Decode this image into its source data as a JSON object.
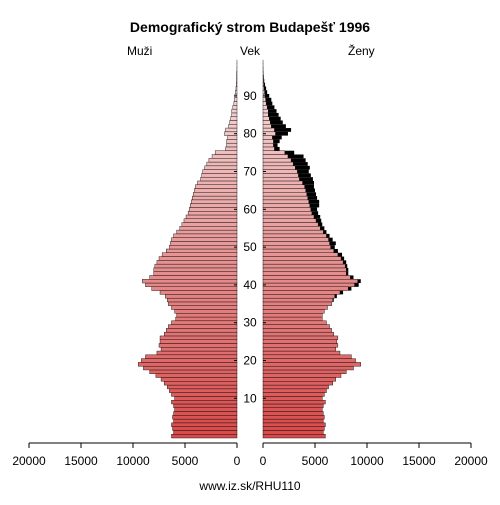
{
  "chart_data": {
    "type": "bar",
    "orientation": "horizontal-pyramid",
    "title": "Demografický strom Budapešť 1996",
    "left_label": "Muži",
    "center_label": "Vek",
    "right_label": "Ženy",
    "footer": "www.iz.sk/RHU110",
    "age_ticks": [
      "10",
      "20",
      "30",
      "40",
      "50",
      "60",
      "70",
      "80",
      "90"
    ],
    "x_tick_labels_left": [
      "20000",
      "15000",
      "10000",
      "5000",
      "0"
    ],
    "x_tick_labels_right": [
      "0",
      "5000",
      "10000",
      "15000",
      "20000"
    ],
    "xlim": [
      0,
      20000
    ],
    "age_range": [
      0,
      99
    ],
    "colors": {
      "bar_young": "#d94a4a",
      "bar_old": "#f7e3e3",
      "women_excess": "#000000",
      "bar_outline": "#000000"
    },
    "ages": [
      0,
      1,
      2,
      3,
      4,
      5,
      6,
      7,
      8,
      9,
      10,
      11,
      12,
      13,
      14,
      15,
      16,
      17,
      18,
      19,
      20,
      21,
      22,
      23,
      24,
      25,
      26,
      27,
      28,
      29,
      30,
      31,
      32,
      33,
      34,
      35,
      36,
      37,
      38,
      39,
      40,
      41,
      42,
      43,
      44,
      45,
      46,
      47,
      48,
      49,
      50,
      51,
      52,
      53,
      54,
      55,
      56,
      57,
      58,
      59,
      60,
      61,
      62,
      63,
      64,
      65,
      66,
      67,
      68,
      69,
      70,
      71,
      72,
      73,
      74,
      75,
      76,
      77,
      78,
      79,
      80,
      81,
      82,
      83,
      84,
      85,
      86,
      87,
      88,
      89,
      90,
      91,
      92,
      93,
      94,
      95,
      96,
      97,
      98,
      99
    ],
    "series": [
      {
        "name": "Muži",
        "values": [
          6300,
          6100,
          6200,
          6300,
          6100,
          6200,
          6100,
          6000,
          6100,
          6300,
          6000,
          6300,
          6500,
          6700,
          7000,
          7300,
          7800,
          8400,
          9000,
          9500,
          9200,
          8800,
          7700,
          7300,
          7500,
          7400,
          7400,
          7000,
          6800,
          6600,
          6300,
          5900,
          5800,
          6000,
          6300,
          6600,
          6700,
          6900,
          7400,
          8200,
          8800,
          9100,
          8400,
          8000,
          8000,
          7900,
          7700,
          7500,
          7200,
          6800,
          6500,
          6400,
          6300,
          6100,
          5800,
          5500,
          5300,
          5100,
          4900,
          4700,
          4600,
          4500,
          4400,
          4300,
          4200,
          4100,
          4000,
          3800,
          3500,
          3400,
          3300,
          3100,
          2900,
          2700,
          2400,
          2100,
          1100,
          1000,
          1000,
          900,
          1200,
          1100,
          800,
          700,
          600,
          500,
          500,
          400,
          300,
          250,
          200,
          150,
          100,
          70,
          50,
          30,
          20,
          10,
          5,
          3
        ]
      },
      {
        "name": "Ženy",
        "values": [
          6000,
          5800,
          5900,
          6000,
          5800,
          5900,
          5800,
          5700,
          5800,
          6000,
          5700,
          5900,
          6100,
          6300,
          6700,
          7000,
          7500,
          8000,
          8700,
          9400,
          8900,
          8500,
          7400,
          7000,
          7200,
          7100,
          7200,
          6800,
          6600,
          6400,
          6100,
          5700,
          5700,
          5900,
          6200,
          6600,
          6800,
          7100,
          7700,
          8500,
          9200,
          9400,
          8700,
          8200,
          8200,
          8100,
          8000,
          7800,
          7600,
          7200,
          6900,
          7000,
          6700,
          6400,
          6100,
          5900,
          5700,
          5600,
          5500,
          5300,
          5200,
          5400,
          5400,
          5200,
          5100,
          5000,
          4900,
          4900,
          4800,
          4600,
          4400,
          4500,
          4300,
          4100,
          3900,
          3000,
          1600,
          1400,
          1600,
          1800,
          2400,
          2700,
          2200,
          1900,
          1700,
          1500,
          1300,
          1100,
          900,
          800,
          600,
          400,
          300,
          200,
          120,
          70,
          40,
          20,
          10,
          5
        ]
      }
    ]
  }
}
